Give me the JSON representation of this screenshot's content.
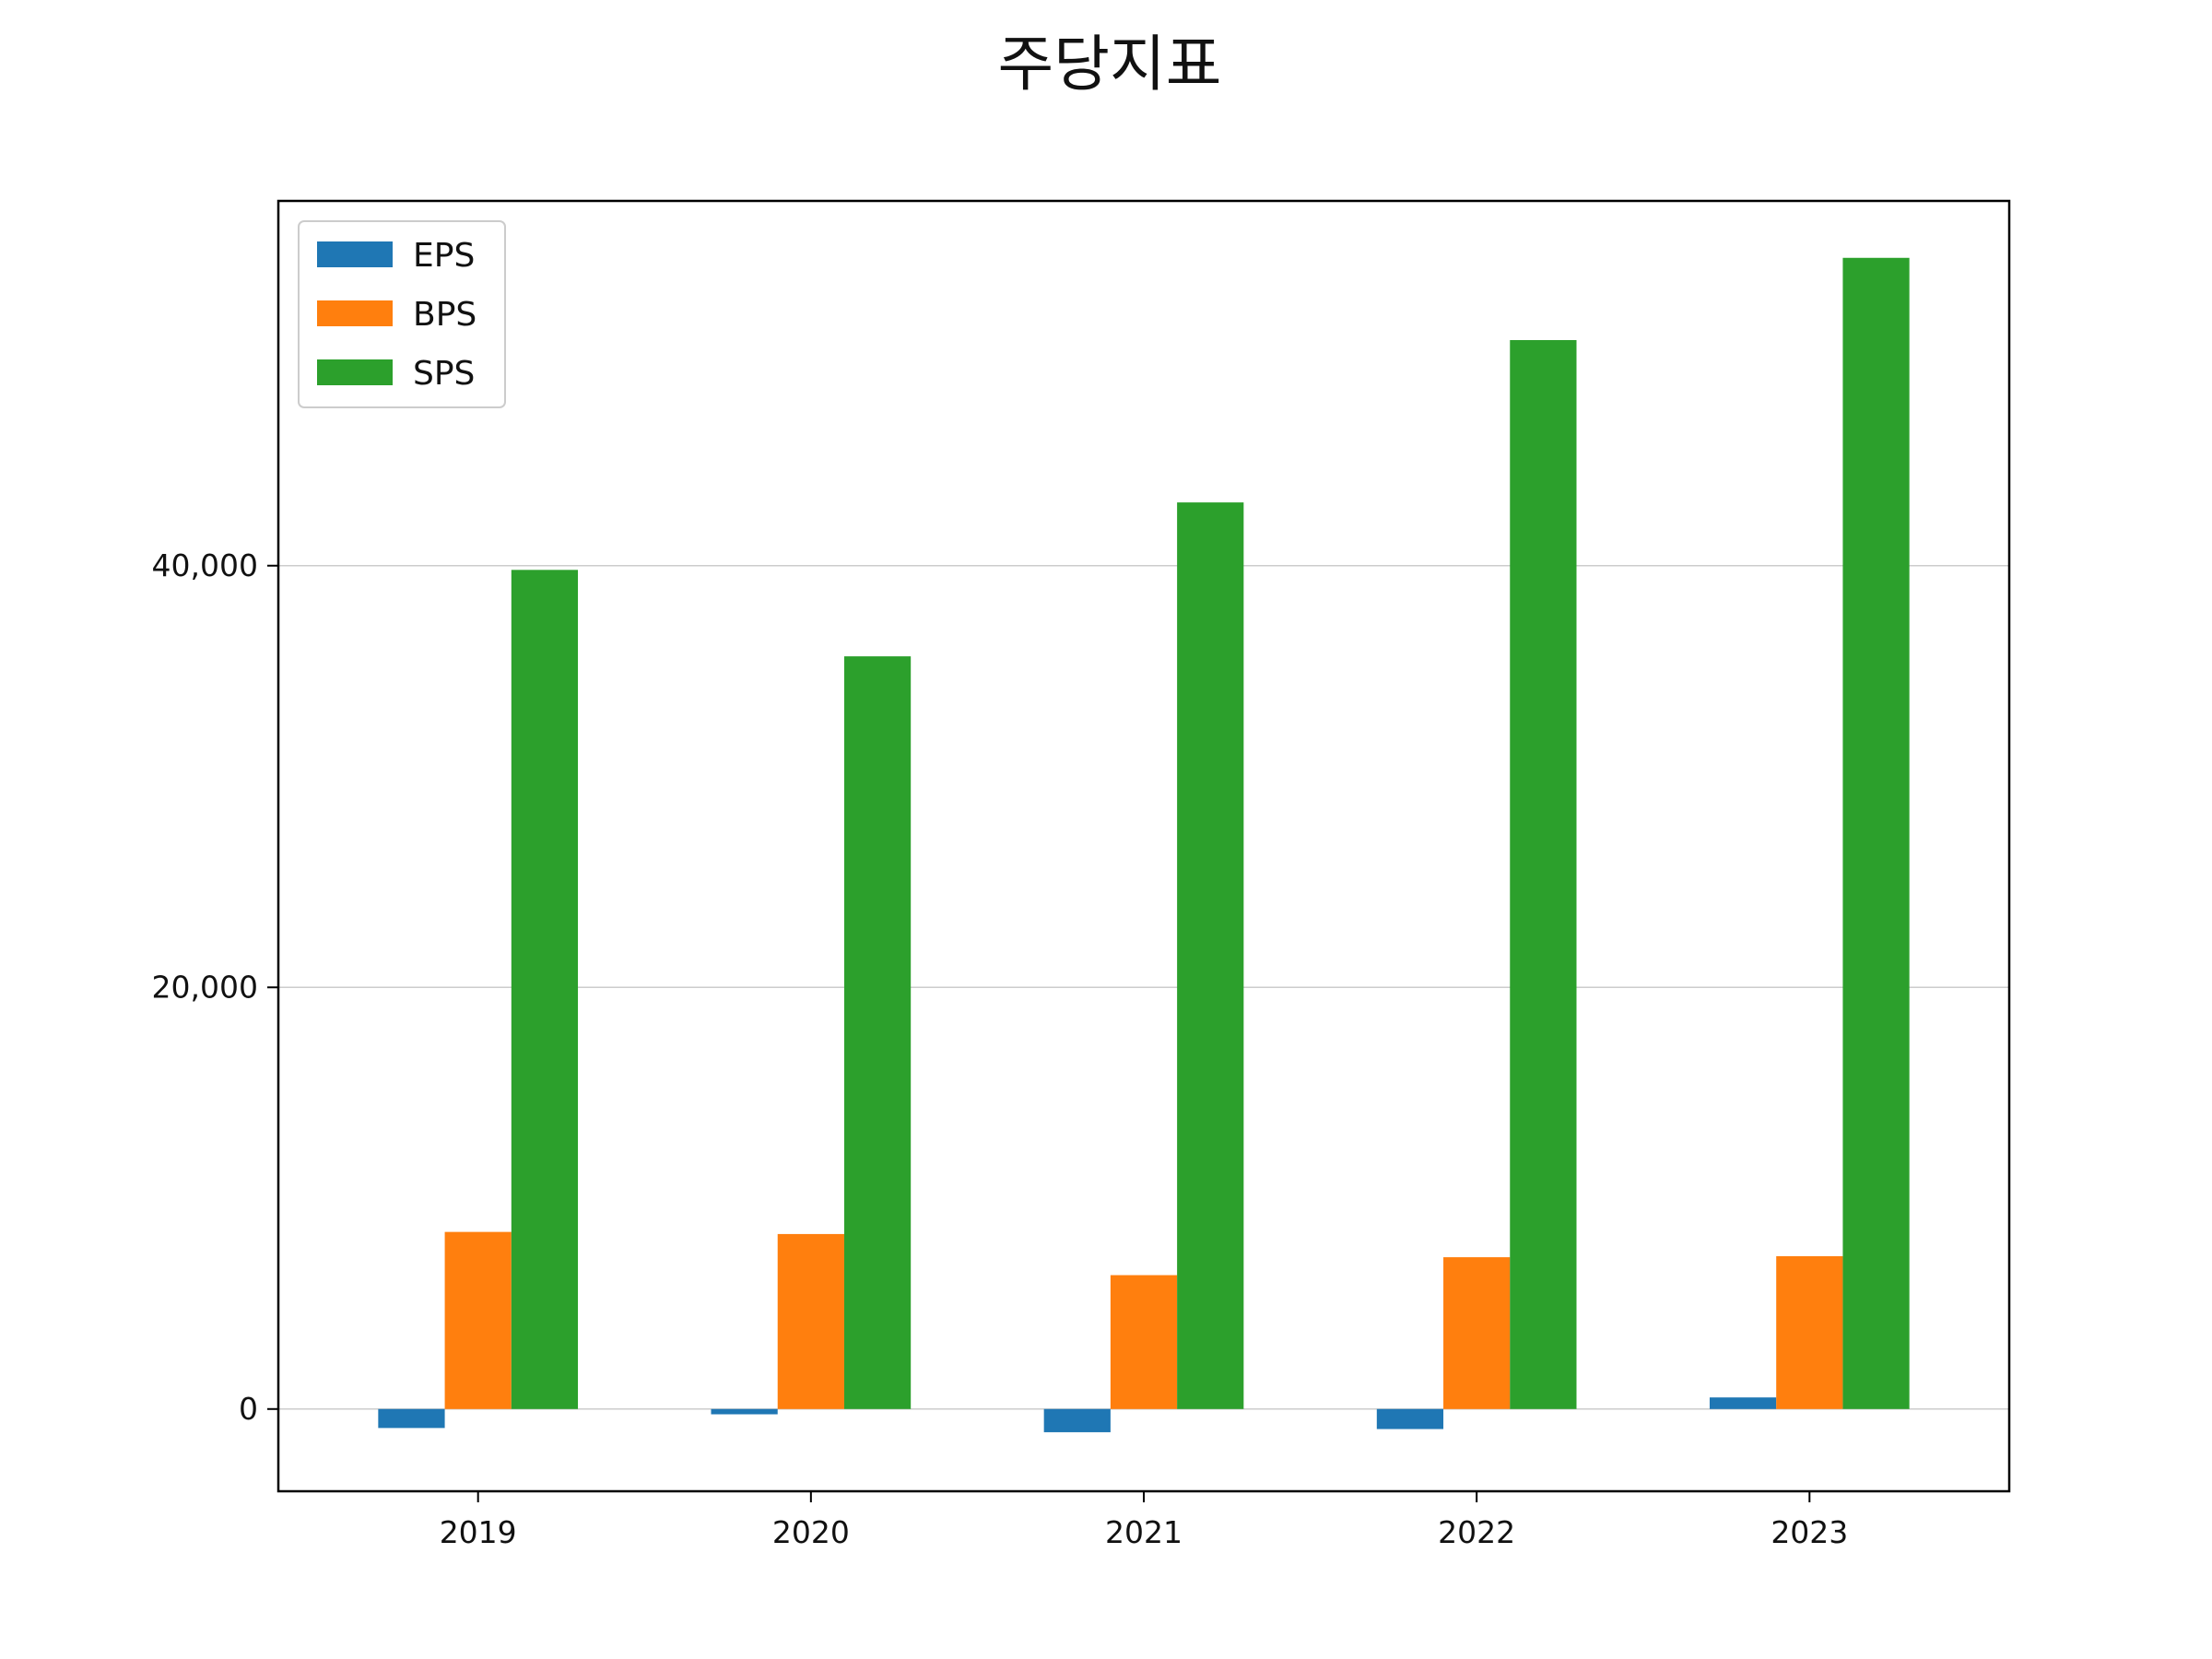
{
  "chart_data": {
    "type": "bar",
    "title": "주당지표",
    "xlabel": "",
    "ylabel": "",
    "categories": [
      "2019",
      "2020",
      "2021",
      "2022",
      "2023"
    ],
    "series": [
      {
        "name": "EPS",
        "color": "#1f77b4",
        "values": [
          -900,
          -250,
          -1100,
          -950,
          550
        ]
      },
      {
        "name": "BPS",
        "color": "#ff7f0e",
        "values": [
          8400,
          8300,
          6350,
          7200,
          7250
        ]
      },
      {
        "name": "SPS",
        "color": "#2ca02c",
        "values": [
          39800,
          35700,
          43000,
          50700,
          54600
        ]
      }
    ],
    "ylim": [
      -3900,
      57300
    ],
    "yticks": [
      0,
      20000,
      40000
    ],
    "ytick_labels": [
      "0",
      "20,000",
      "40,000"
    ],
    "grid": "horizontal",
    "legend_position": "top-left"
  }
}
